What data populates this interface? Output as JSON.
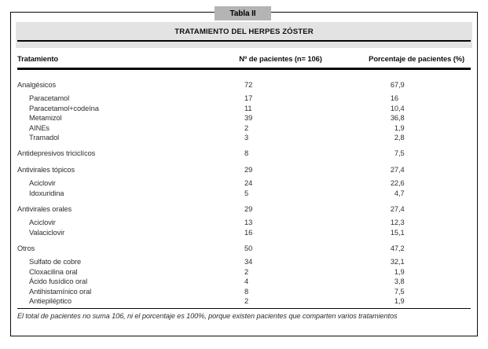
{
  "page": {
    "tab_label": "Tabla II",
    "title": "TRATAMIENTO DEL HERPES ZÓSTER",
    "footnote": "El total de pacientes no suma 106, ni el porcentaje es 100%, porque existen pacientes que comparten varios tratamientos"
  },
  "table": {
    "columns": [
      "Tratamiento",
      "Nº de pacientes (n= 106)",
      "Porcentaje de pacientes (%)"
    ],
    "groups": [
      {
        "label": "Analgésicos",
        "patients": "72",
        "percent": "67,9",
        "items": [
          {
            "label": "Paracetamol",
            "patients": "17",
            "percent": "16"
          },
          {
            "label": "Paracetamol+codeína",
            "patients": "11",
            "percent": "10,4"
          },
          {
            "label": "Metamizol",
            "patients": "39",
            "percent": "36,8"
          },
          {
            "label": "AINEs",
            "patients": "2",
            "percent": "1,9"
          },
          {
            "label": "Tramadol",
            "patients": "3",
            "percent": "2,8"
          }
        ]
      },
      {
        "label": "Antidepresivos triciclícos",
        "patients": "8",
        "percent": "7,5",
        "items": []
      },
      {
        "label": "Antivirales tópicos",
        "patients": "29",
        "percent": "27,4",
        "items": [
          {
            "label": "Aciclovir",
            "patients": "24",
            "percent": "22,6"
          },
          {
            "label": "Idoxuridina",
            "patients": "5",
            "percent": "4,7"
          }
        ]
      },
      {
        "label": "Antivirales orales",
        "patients": "29",
        "percent": "27,4",
        "items": [
          {
            "label": "Aciclovir",
            "patients": "13",
            "percent": "12,3"
          },
          {
            "label": "Valaciclovir",
            "patients": "16",
            "percent": "15,1"
          }
        ]
      },
      {
        "label": "Otros",
        "patients": "50",
        "percent": "47,2",
        "items": [
          {
            "label": "Sulfato de cobre",
            "patients": "34",
            "percent": "32,1"
          },
          {
            "label": "Cloxacilina oral",
            "patients": "2",
            "percent": "1,9"
          },
          {
            "label": "Ácido fusídico oral",
            "patients": "4",
            "percent": "3,8"
          },
          {
            "label": "Antihistamínico oral",
            "patients": "8",
            "percent": "7,5"
          },
          {
            "label": "Antiepiléptico",
            "patients": "2",
            "percent": "1,9"
          }
        ]
      }
    ]
  },
  "colors": {
    "tab_bg": "#b4b4b4",
    "title_bar_bg": "#e3e3e3",
    "rule": "#050505",
    "text": "#2e2e2e"
  }
}
